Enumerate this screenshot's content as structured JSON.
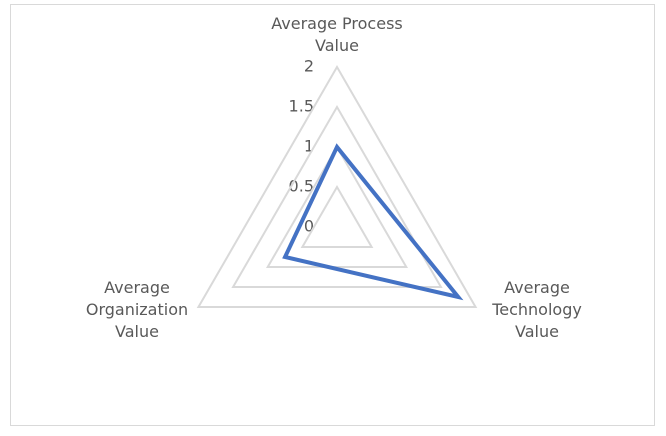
{
  "chart_data": {
    "type": "radar",
    "categories": [
      "Average Process Value",
      "Average Technology Value",
      "Average Organization Value"
    ],
    "series": [
      {
        "color": "#4472c4",
        "values": [
          1,
          1.75,
          0.75
        ]
      }
    ],
    "ylim": [
      0,
      2
    ],
    "yticks": [
      0,
      0.5,
      1,
      1.5,
      2
    ],
    "grid": true,
    "grid_color": "#d9d9d9"
  }
}
